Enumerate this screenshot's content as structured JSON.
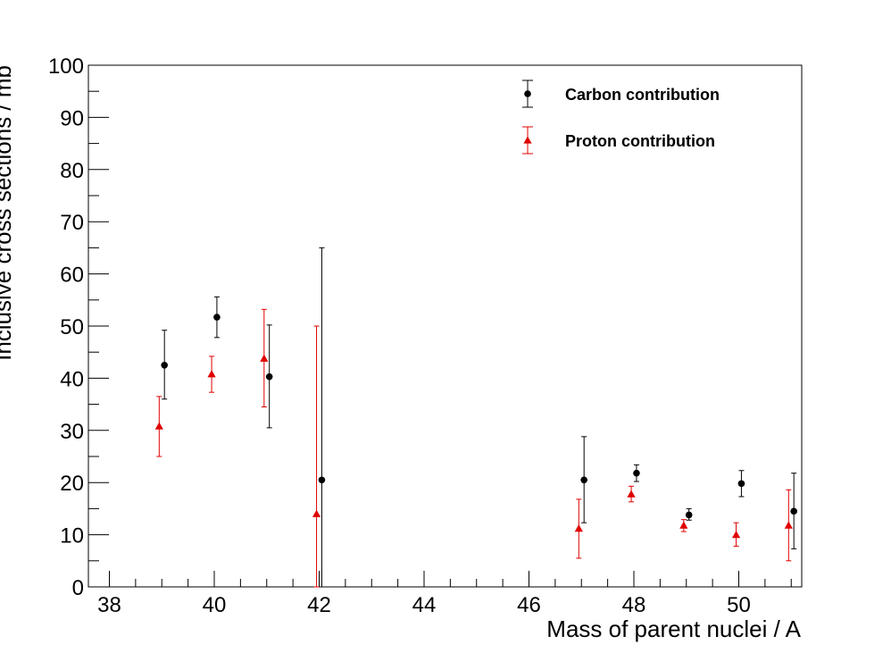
{
  "chart_data": {
    "type": "scatter",
    "title": "",
    "xlabel": "Mass of parent nuclei / A",
    "ylabel": "Inclusive cross sections / mb",
    "xlim": [
      37.6,
      51.2
    ],
    "ylim": [
      0,
      100
    ],
    "xticks": [
      38,
      40,
      42,
      44,
      46,
      48,
      50
    ],
    "yticks": [
      0,
      10,
      20,
      30,
      40,
      50,
      60,
      70,
      80,
      90,
      100
    ],
    "grid": false,
    "legend_position": "top-right",
    "series": [
      {
        "name": "Carbon contribution",
        "marker": "circle",
        "color": "#000000",
        "points": [
          {
            "x": 39.05,
            "y": 42.5,
            "lo": 36.0,
            "hi": 49.2
          },
          {
            "x": 40.05,
            "y": 51.7,
            "lo": 47.8,
            "hi": 55.6
          },
          {
            "x": 41.05,
            "y": 40.3,
            "lo": 30.5,
            "hi": 50.2
          },
          {
            "x": 42.05,
            "y": 20.5,
            "lo": 0.0,
            "hi": 65.0
          },
          {
            "x": 47.05,
            "y": 20.5,
            "lo": 12.3,
            "hi": 28.8
          },
          {
            "x": 48.05,
            "y": 21.8,
            "lo": 20.2,
            "hi": 23.4
          },
          {
            "x": 49.05,
            "y": 13.8,
            "lo": 12.8,
            "hi": 15.0
          },
          {
            "x": 50.05,
            "y": 19.8,
            "lo": 17.3,
            "hi": 22.3
          },
          {
            "x": 51.05,
            "y": 14.5,
            "lo": 7.3,
            "hi": 21.8
          }
        ]
      },
      {
        "name": "Proton contribution",
        "marker": "triangle",
        "color": "#e00000",
        "points": [
          {
            "x": 38.95,
            "y": 30.8,
            "lo": 25.0,
            "hi": 36.5
          },
          {
            "x": 39.95,
            "y": 40.8,
            "lo": 37.3,
            "hi": 44.2
          },
          {
            "x": 40.95,
            "y": 43.8,
            "lo": 34.5,
            "hi": 53.2
          },
          {
            "x": 41.95,
            "y": 14.0,
            "lo": 0.0,
            "hi": 50.0
          },
          {
            "x": 46.95,
            "y": 11.2,
            "lo": 5.5,
            "hi": 16.8
          },
          {
            "x": 47.95,
            "y": 17.8,
            "lo": 16.3,
            "hi": 19.3
          },
          {
            "x": 48.95,
            "y": 11.8,
            "lo": 10.6,
            "hi": 12.9
          },
          {
            "x": 49.95,
            "y": 10.0,
            "lo": 7.8,
            "hi": 12.3
          },
          {
            "x": 50.95,
            "y": 11.8,
            "lo": 5.0,
            "hi": 18.6
          }
        ]
      }
    ]
  }
}
